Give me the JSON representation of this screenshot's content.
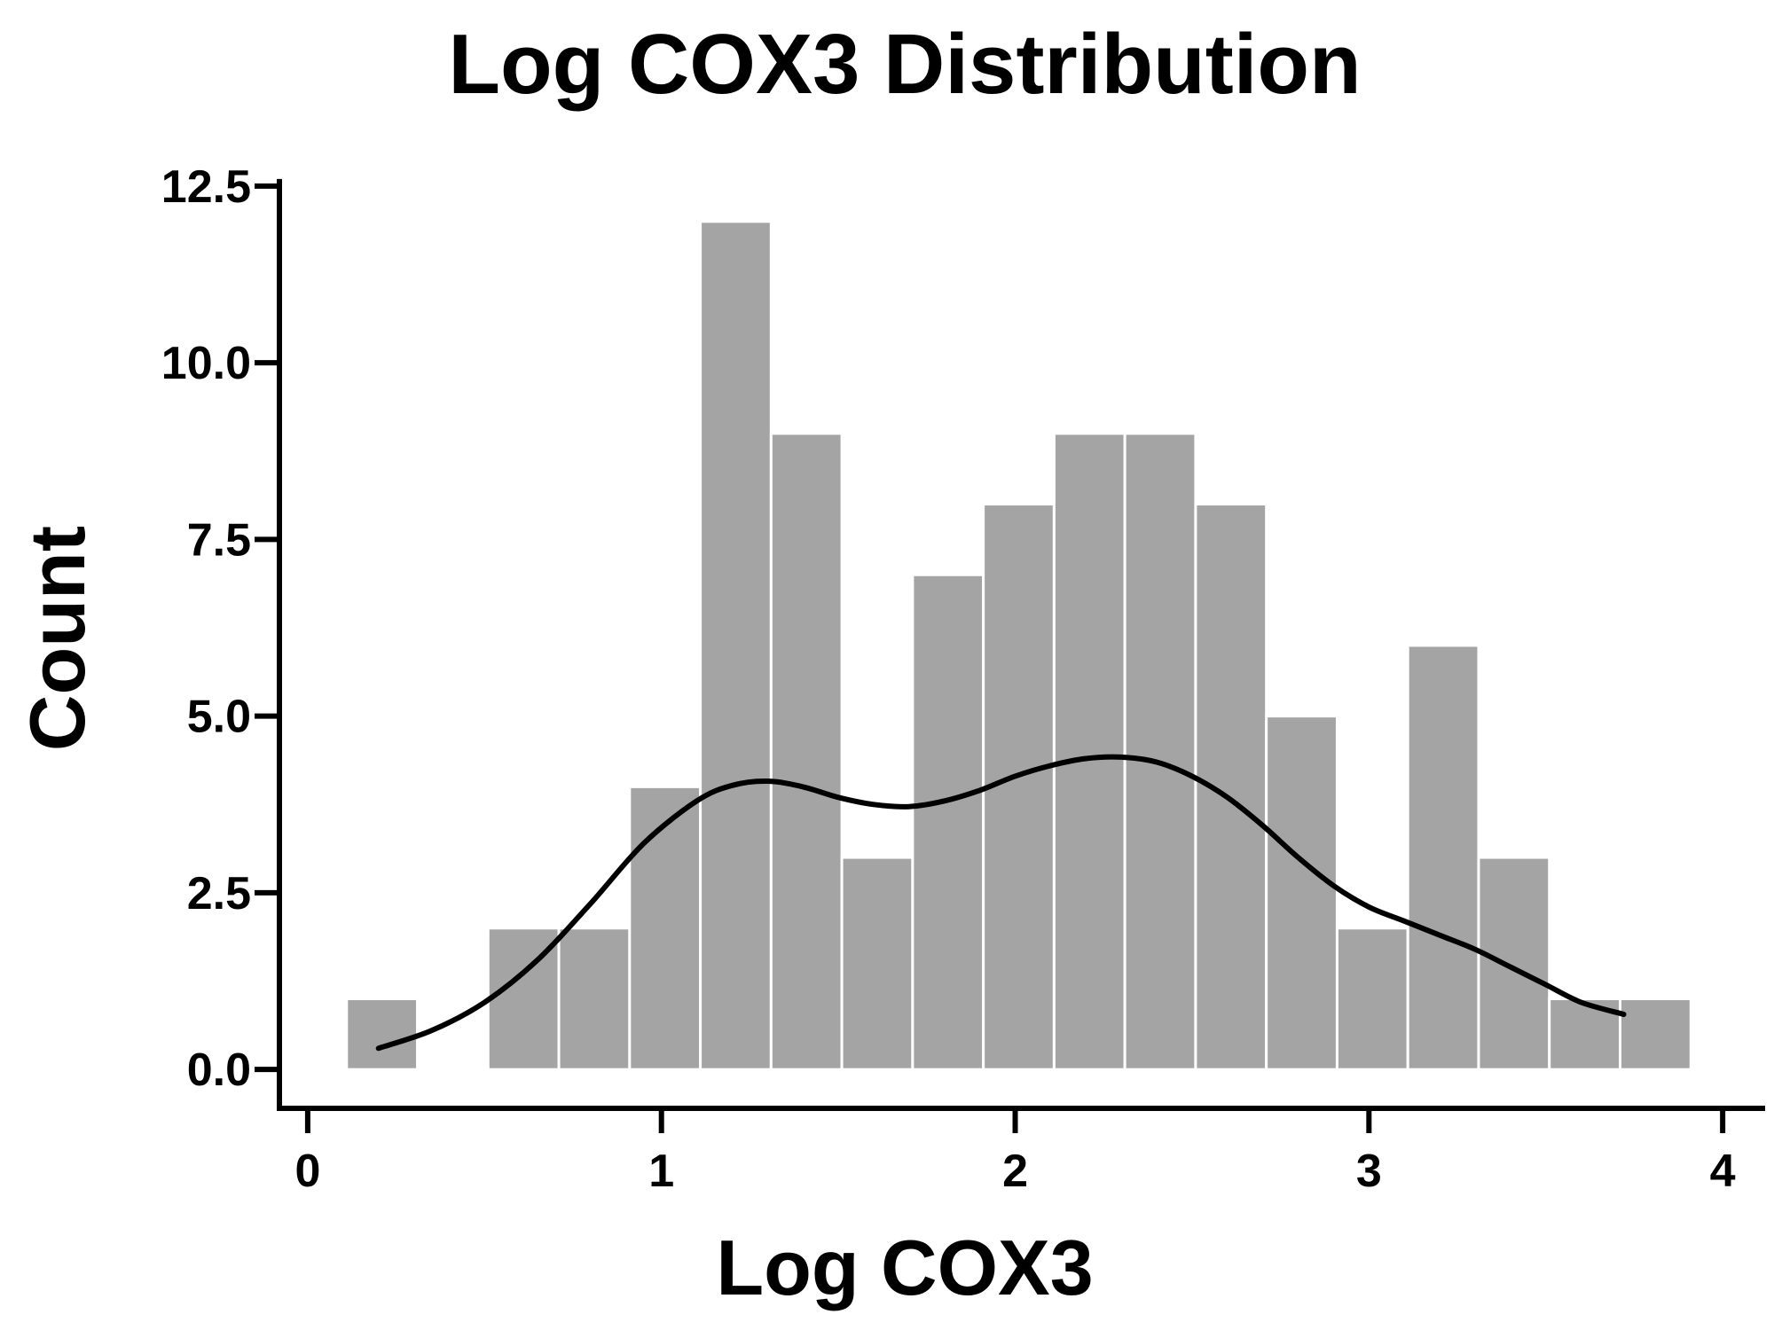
{
  "chart_data": {
    "type": "bar",
    "title": "Log COX3 Distribution",
    "xlabel": "Log COX3",
    "ylabel": "Count",
    "xlim": [
      -0.08,
      4.12
    ],
    "ylim": [
      -0.55,
      12.75
    ],
    "xticks": [
      0,
      1,
      2,
      3,
      4
    ],
    "xtick_labels": [
      "0",
      "1",
      "2",
      "3",
      "4"
    ],
    "yticks": [
      0.0,
      2.5,
      5.0,
      7.5,
      10.0,
      12.5
    ],
    "ytick_labels": [
      "0.0",
      "2.5",
      "5.0",
      "7.5",
      "10.0",
      "12.5"
    ],
    "bin_edges": [
      0.11,
      0.31,
      0.51,
      0.71,
      0.91,
      1.11,
      1.31,
      1.51,
      1.71,
      1.91,
      2.11,
      2.31,
      2.51,
      2.71,
      2.91,
      3.11,
      3.31,
      3.51,
      3.71,
      3.91
    ],
    "values": [
      1,
      0,
      2,
      2,
      4,
      12,
      9,
      3,
      7,
      8,
      9,
      9,
      8,
      5,
      2,
      6,
      3,
      1,
      1
    ],
    "bar_color": "#a4a4a4",
    "kde": {
      "x": [
        0.2,
        0.35,
        0.5,
        0.65,
        0.8,
        0.95,
        1.1,
        1.2,
        1.3,
        1.4,
        1.5,
        1.6,
        1.7,
        1.8,
        1.9,
        2.0,
        2.1,
        2.2,
        2.3,
        2.4,
        2.5,
        2.6,
        2.7,
        2.8,
        2.9,
        3.0,
        3.1,
        3.2,
        3.3,
        3.4,
        3.5,
        3.6,
        3.72
      ],
      "y": [
        0.3,
        0.55,
        0.95,
        1.55,
        2.35,
        3.2,
        3.8,
        4.02,
        4.08,
        4.0,
        3.85,
        3.75,
        3.72,
        3.8,
        3.95,
        4.15,
        4.3,
        4.4,
        4.42,
        4.35,
        4.15,
        3.85,
        3.45,
        3.0,
        2.6,
        2.3,
        2.1,
        1.9,
        1.7,
        1.45,
        1.2,
        0.95,
        0.78
      ]
    },
    "grid": false,
    "legend": "none"
  }
}
